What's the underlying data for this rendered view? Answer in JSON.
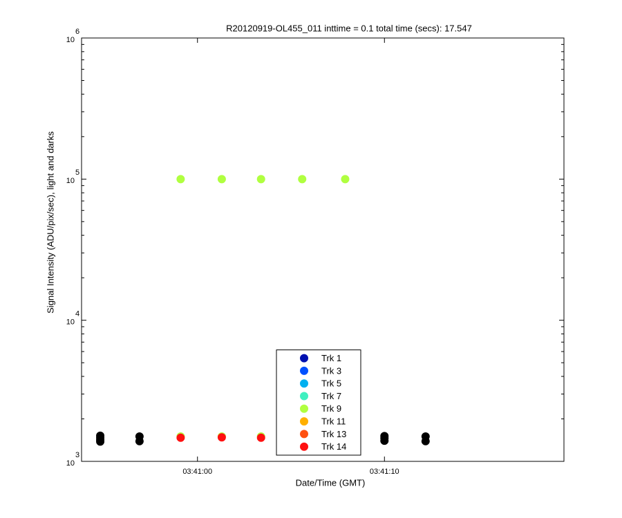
{
  "chart_data": {
    "type": "scatter",
    "title": "R20120919-OL455_011 inttime = 0.1 total time (secs): 17.547",
    "x_label": "Date/Time (GMT)",
    "y_label": "Signal Intensity (ADU/pix/sec), light and darks",
    "xlim": [
      -6.2,
      19.6
    ],
    "xticks": [
      {
        "value": 0,
        "label": "03:41:00"
      },
      {
        "value": 10,
        "label": "03:41:10"
      }
    ],
    "ylim": [
      1000,
      1000000
    ],
    "yscale": "log",
    "yticks": [
      {
        "value": 1000,
        "label": "10",
        "exponent": "3"
      },
      {
        "value": 10000,
        "label": "10",
        "exponent": "4"
      },
      {
        "value": 100000,
        "label": "10",
        "exponent": "5"
      },
      {
        "value": 1000000,
        "label": "10",
        "exponent": "6"
      }
    ],
    "grid": false,
    "legend": "south",
    "series": [
      {
        "color": "#000000",
        "x": [
          -5.2,
          -5.2,
          -5.2,
          -5.2,
          -3.1,
          -3.1,
          10,
          10,
          10,
          12.2,
          12.2
        ],
        "values": [
          1520,
          1470,
          1420,
          1380,
          1500,
          1390,
          1510,
          1460,
          1400,
          1500,
          1390
        ]
      },
      {
        "name": "Trk 1",
        "color": "#0010b0",
        "x": [],
        "values": []
      },
      {
        "name": "Trk 3",
        "color": "#0050ff",
        "x": [],
        "values": []
      },
      {
        "name": "Trk 5",
        "color": "#00b0f0",
        "x": [],
        "values": []
      },
      {
        "name": "Trk 7",
        "color": "#40f0c0",
        "x": [],
        "values": []
      },
      {
        "name": "Trk 9",
        "color": "#b0ff40",
        "x": [
          -0.9,
          1.3,
          3.4,
          5.6,
          7.9,
          -0.9,
          1.3,
          3.4
        ],
        "values": [
          100000,
          100000,
          100000,
          100000,
          100000,
          1500,
          1500,
          1500
        ]
      },
      {
        "name": "Trk 11",
        "color": "#ffb000",
        "x": [],
        "values": []
      },
      {
        "name": "Trk 13",
        "color": "#ff5010",
        "x": [],
        "values": []
      },
      {
        "name": "Trk 14",
        "color": "#ff1010",
        "x": [
          -0.9,
          1.3,
          3.4
        ],
        "values": [
          1470,
          1480,
          1470
        ]
      }
    ]
  }
}
